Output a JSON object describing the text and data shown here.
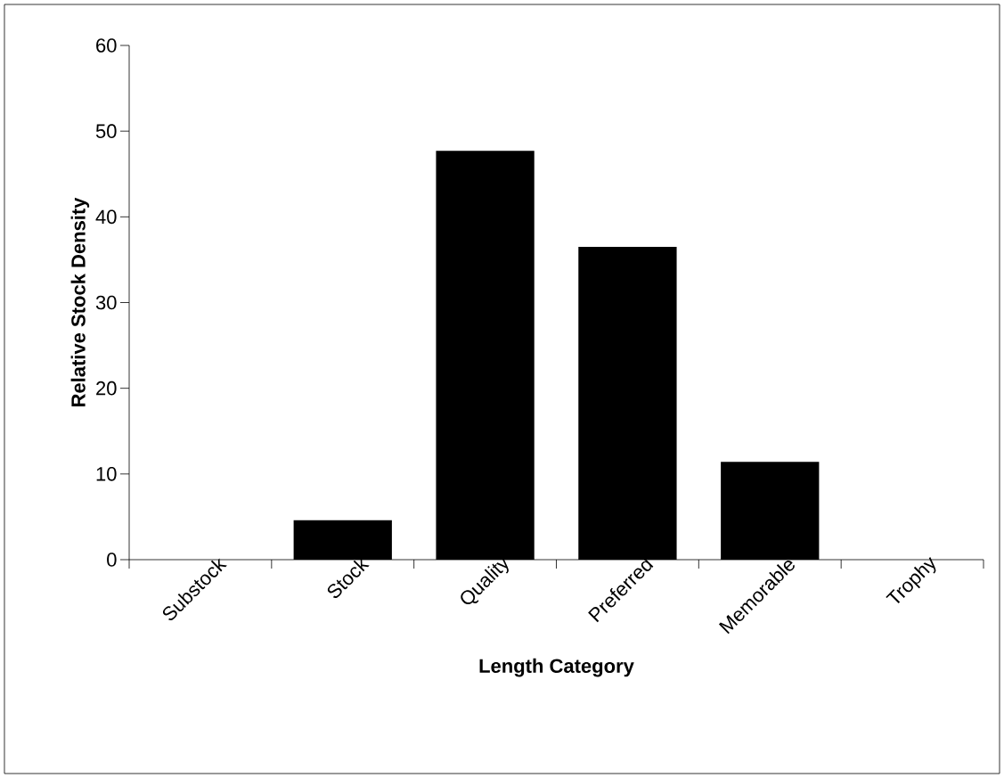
{
  "chart_data": {
    "type": "bar",
    "xlabel": "Length Category",
    "ylabel": "Relative Stock Density",
    "categories": [
      "Substock",
      "Stock",
      "Quality",
      "Preferred",
      "Memorable",
      "Trophy"
    ],
    "values": [
      0,
      4.6,
      47.7,
      36.5,
      11.4,
      0
    ],
    "color": "#000000",
    "ylim": [
      0,
      60
    ],
    "yticks": [
      0,
      10,
      20,
      30,
      40,
      50,
      60
    ]
  }
}
